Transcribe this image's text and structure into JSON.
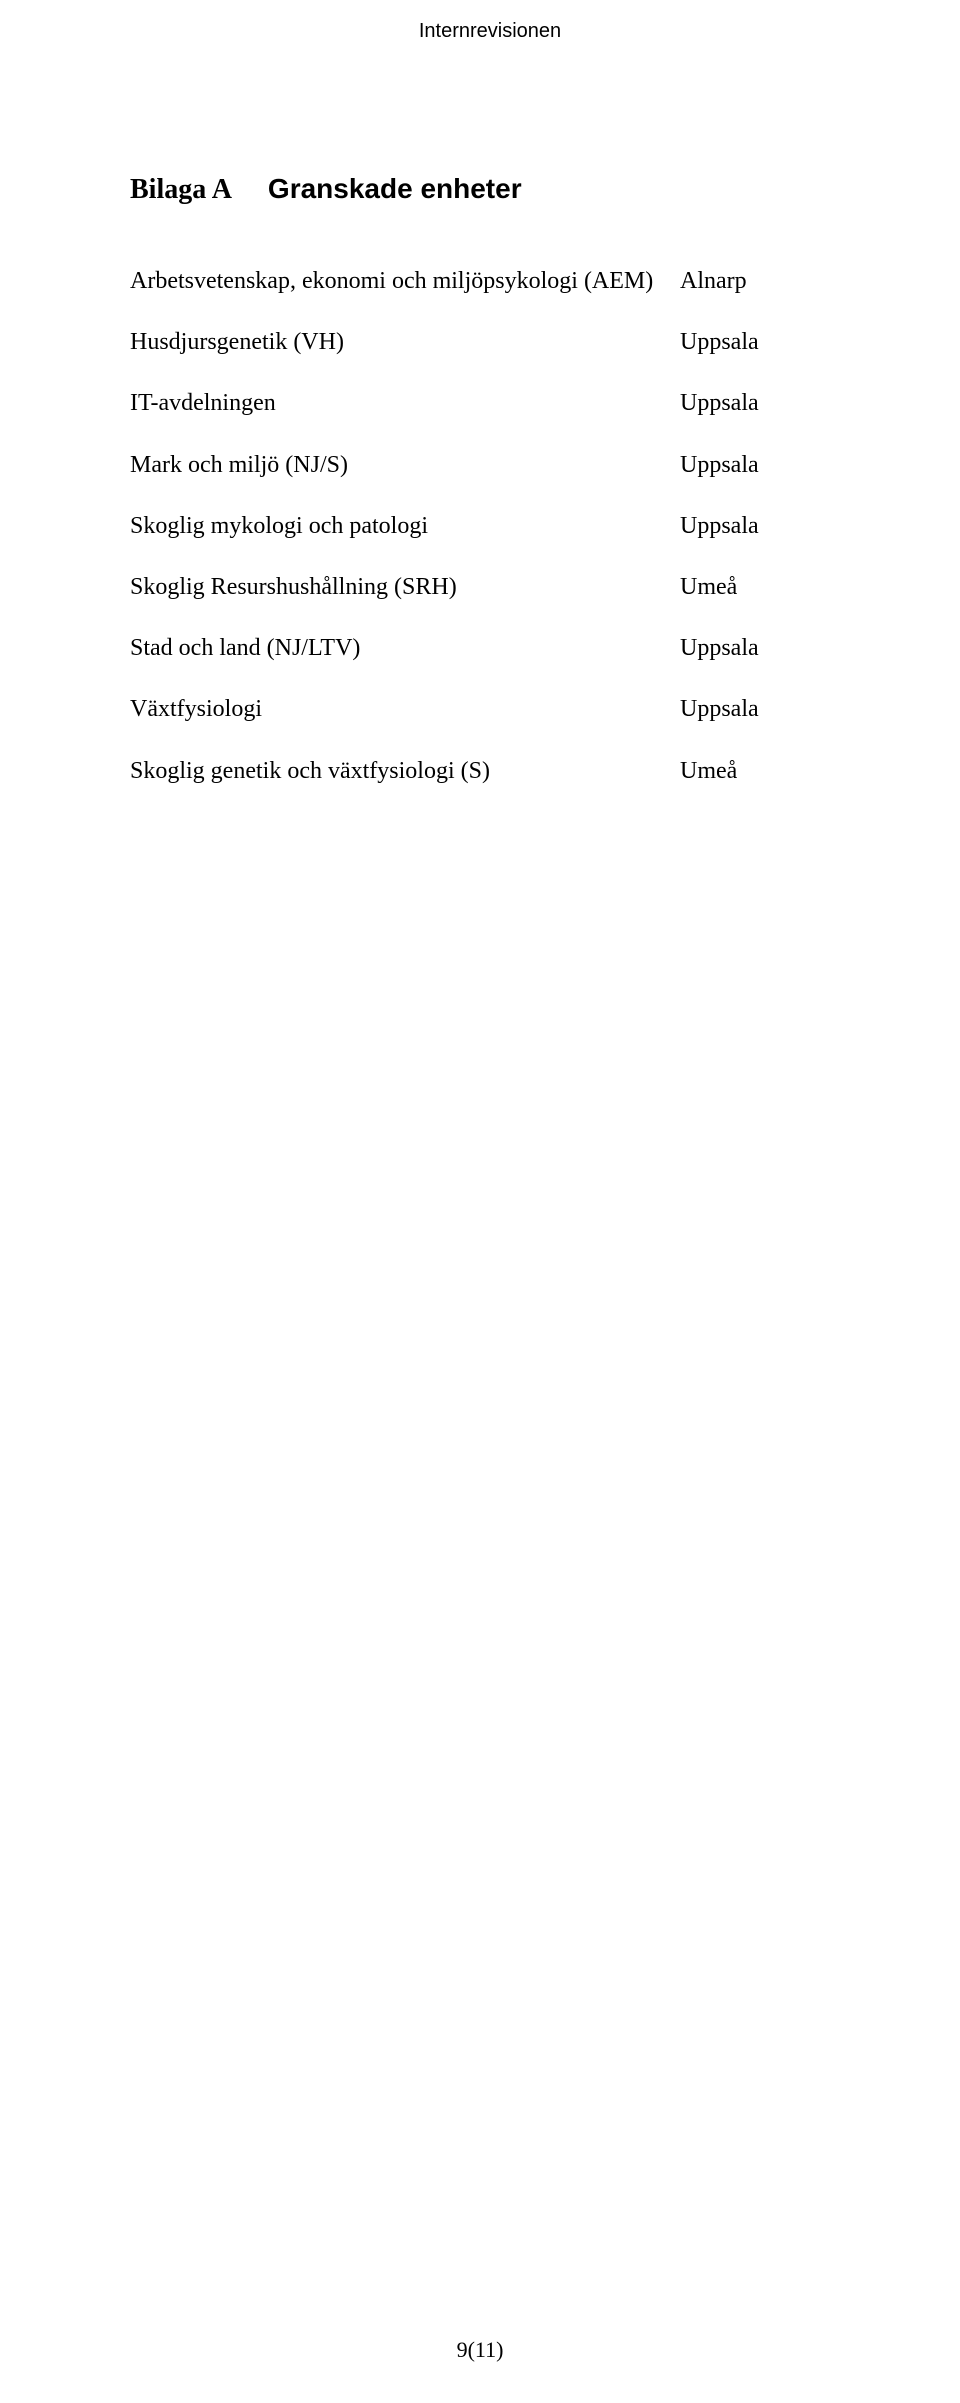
{
  "header": {
    "title": "Internrevisionen"
  },
  "main_title": {
    "label_a": "Bilaga A",
    "label_b": "Granskade enheter"
  },
  "entries": [
    {
      "name": "Arbetsvetenskap, ekonomi och miljöpsykologi (AEM)",
      "location": "Alnarp"
    },
    {
      "name": "Husdjursgenetik (VH)",
      "location": "Uppsala"
    },
    {
      "name": "IT-avdelningen",
      "location": "Uppsala"
    },
    {
      "name": "Mark och miljö (NJ/S)",
      "location": "Uppsala"
    },
    {
      "name": "Skoglig mykologi och patologi",
      "location": "Uppsala"
    },
    {
      "name": "Skoglig Resurshushållning (SRH)",
      "location": "Umeå"
    },
    {
      "name": "Stad och land (NJ/LTV)",
      "location": "Uppsala"
    },
    {
      "name": "Växtfysiologi",
      "location": "Uppsala"
    },
    {
      "name": "Skoglig genetik och växtfysiologi (S)",
      "location": "Umeå"
    }
  ],
  "footer": {
    "page_indicator": "9(11)"
  }
}
